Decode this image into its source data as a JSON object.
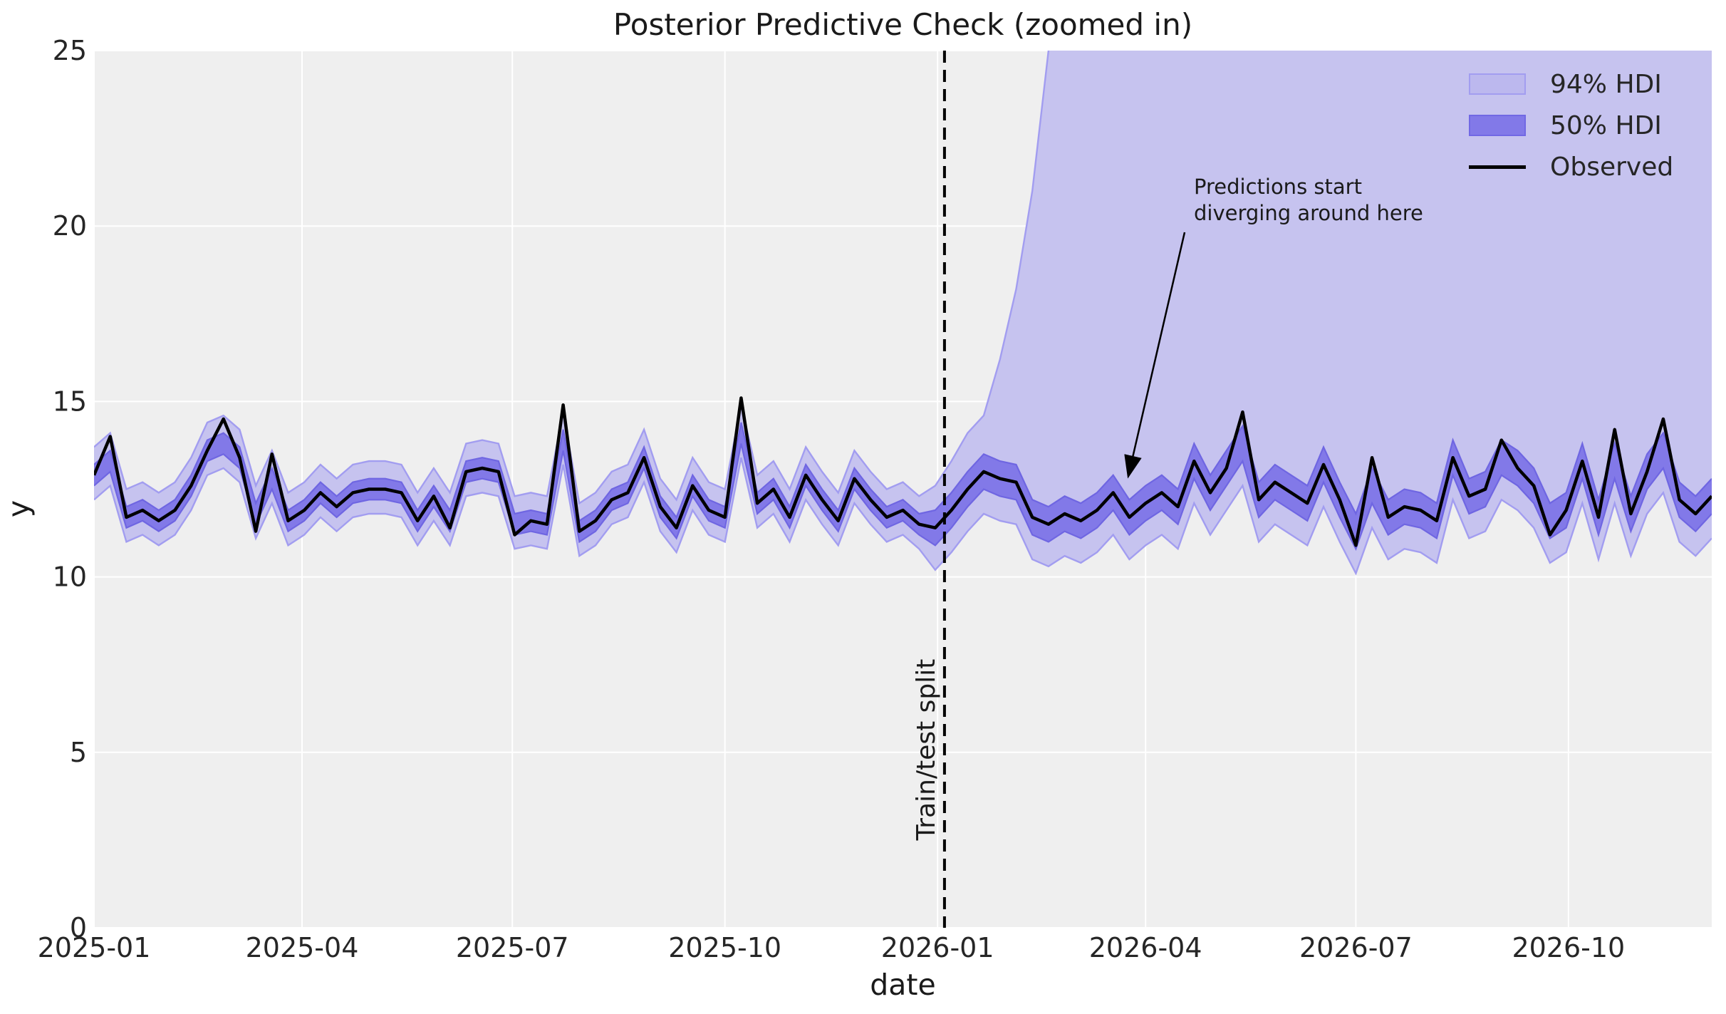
{
  "title": "Posterior Predictive Check (zoomed in)",
  "axes": {
    "xlabel": "date",
    "ylabel": "y"
  },
  "legend": {
    "items": [
      {
        "label": "94% HDI",
        "swatch": "patch-light"
      },
      {
        "label": "50% HDI",
        "swatch": "patch-dark"
      },
      {
        "label": "Observed",
        "swatch": "line"
      }
    ]
  },
  "split": {
    "label": "Train/test split",
    "date": "2026-01-01"
  },
  "annotation": {
    "line1": "Predictions start",
    "line2": "diverging around here"
  },
  "colors": {
    "figure_bg": "#ffffff",
    "axes_bg": "#efefef",
    "grid": "#ffffff",
    "hdi94_fill": "#c6c3ef",
    "hdi94_edge": "#a29df0",
    "hdi50_fill": "#8279e8",
    "hdi50_edge": "#6f66e2",
    "observed_line": "#000000",
    "split_line": "#000000",
    "text": "#262626"
  },
  "chart_data": {
    "type": "line",
    "title": "Posterior Predictive Check (zoomed in)",
    "xlabel": "date",
    "ylabel": "y",
    "grid": true,
    "legend_position": "upper right",
    "ylim": [
      0,
      25
    ],
    "y_ticks": [
      0,
      5,
      10,
      15,
      20,
      25
    ],
    "x_start_date": "2025-01-01",
    "x_freq_days": 7,
    "x_total_days": 700,
    "x_ticks": [
      {
        "label": "2025-01",
        "day": 0
      },
      {
        "label": "2025-04",
        "day": 90
      },
      {
        "label": "2025-07",
        "day": 181
      },
      {
        "label": "2025-10",
        "day": 273
      },
      {
        "label": "2026-01",
        "day": 365
      },
      {
        "label": "2026-04",
        "day": 455
      },
      {
        "label": "2026-07",
        "day": 546
      },
      {
        "label": "2026-10",
        "day": 638
      }
    ],
    "train_test_split_day": 368,
    "series": {
      "observed": [
        12.9,
        14.0,
        11.7,
        11.9,
        11.6,
        11.9,
        12.6,
        13.6,
        14.5,
        13.4,
        11.3,
        13.5,
        11.6,
        11.9,
        12.4,
        12.0,
        12.4,
        12.5,
        12.5,
        12.4,
        11.6,
        12.3,
        11.4,
        13.0,
        13.1,
        13.0,
        11.2,
        11.6,
        11.5,
        14.9,
        11.3,
        11.6,
        12.2,
        12.4,
        13.4,
        12.0,
        11.4,
        12.6,
        11.9,
        11.7,
        15.1,
        12.1,
        12.5,
        11.7,
        12.9,
        12.2,
        11.6,
        12.8,
        12.2,
        11.7,
        11.9,
        11.5,
        11.4,
        11.9,
        12.5,
        13.0,
        12.8,
        12.7,
        11.7,
        11.5,
        11.8,
        11.6,
        11.9,
        12.4,
        11.7,
        12.1,
        12.4,
        12.0,
        13.3,
        12.4,
        13.1,
        14.7,
        12.2,
        12.7,
        12.4,
        12.1,
        13.2,
        12.2,
        10.9,
        13.4,
        11.7,
        12.0,
        11.9,
        11.6,
        13.4,
        12.3,
        12.5,
        13.9,
        13.1,
        12.6,
        11.2,
        11.9,
        13.3,
        11.7,
        14.2,
        11.8,
        13.0,
        14.5,
        12.2,
        11.8,
        12.3
      ],
      "hdi50_lower": [
        12.6,
        13.0,
        11.4,
        11.6,
        11.3,
        11.6,
        12.3,
        13.3,
        13.5,
        13.1,
        11.5,
        12.5,
        11.3,
        11.6,
        12.1,
        11.7,
        12.1,
        12.2,
        12.2,
        12.1,
        11.3,
        12.0,
        11.3,
        12.7,
        12.8,
        12.7,
        11.2,
        11.3,
        11.2,
        13.6,
        11.0,
        11.3,
        11.9,
        12.1,
        13.1,
        11.7,
        11.1,
        12.3,
        11.6,
        11.4,
        13.8,
        11.8,
        12.2,
        11.4,
        12.6,
        11.9,
        11.3,
        12.5,
        11.9,
        11.4,
        11.6,
        11.2,
        10.9,
        11.4,
        12.0,
        12.5,
        12.3,
        12.2,
        11.2,
        11.0,
        11.3,
        11.1,
        11.4,
        11.9,
        11.2,
        11.6,
        11.9,
        11.5,
        12.8,
        11.9,
        12.6,
        13.3,
        11.7,
        12.2,
        11.9,
        11.6,
        12.7,
        11.7,
        10.8,
        12.1,
        11.2,
        11.5,
        11.4,
        11.1,
        12.9,
        11.8,
        12.0,
        12.9,
        12.6,
        12.1,
        11.1,
        11.4,
        12.8,
        11.2,
        12.8,
        11.3,
        12.5,
        13.1,
        11.7,
        11.3,
        11.8
      ],
      "hdi50_upper": [
        13.2,
        13.6,
        12.0,
        12.2,
        11.9,
        12.2,
        12.9,
        13.9,
        14.1,
        13.7,
        12.1,
        13.1,
        11.9,
        12.2,
        12.7,
        12.3,
        12.7,
        12.8,
        12.8,
        12.7,
        11.9,
        12.6,
        11.9,
        13.3,
        13.4,
        13.3,
        11.8,
        11.9,
        11.8,
        14.2,
        11.6,
        11.9,
        12.5,
        12.7,
        13.7,
        12.3,
        11.7,
        12.9,
        12.2,
        12.0,
        14.4,
        12.4,
        12.8,
        12.0,
        13.2,
        12.5,
        11.9,
        13.1,
        12.5,
        12.0,
        12.2,
        11.8,
        11.9,
        12.4,
        13.0,
        13.5,
        13.3,
        13.2,
        12.2,
        12.0,
        12.3,
        12.1,
        12.4,
        12.9,
        12.2,
        12.6,
        12.9,
        12.5,
        13.8,
        12.9,
        13.6,
        14.3,
        12.7,
        13.2,
        12.9,
        12.6,
        13.7,
        12.7,
        11.8,
        13.1,
        12.2,
        12.5,
        12.4,
        12.1,
        13.9,
        12.8,
        13.0,
        13.9,
        13.6,
        13.1,
        12.1,
        12.4,
        13.8,
        12.2,
        13.8,
        12.3,
        13.5,
        14.1,
        12.7,
        12.3,
        12.8
      ],
      "hdi94_lower": [
        12.2,
        12.6,
        11.0,
        11.2,
        10.9,
        11.2,
        11.9,
        12.9,
        13.1,
        12.7,
        11.1,
        12.1,
        10.9,
        11.2,
        11.7,
        11.3,
        11.7,
        11.8,
        11.8,
        11.7,
        10.9,
        11.6,
        10.9,
        12.3,
        12.4,
        12.3,
        10.8,
        10.9,
        10.8,
        13.2,
        10.6,
        10.9,
        11.5,
        11.7,
        12.7,
        11.3,
        10.7,
        11.9,
        11.2,
        11.0,
        13.4,
        11.4,
        11.8,
        11.0,
        12.2,
        11.5,
        10.9,
        12.1,
        11.5,
        11.0,
        11.2,
        10.8,
        10.2,
        10.7,
        11.3,
        11.8,
        11.6,
        11.5,
        10.5,
        10.3,
        10.6,
        10.4,
        10.7,
        11.2,
        10.5,
        10.9,
        11.2,
        10.8,
        12.1,
        11.2,
        11.9,
        12.6,
        11.0,
        11.5,
        11.2,
        10.9,
        12.0,
        11.0,
        10.1,
        11.4,
        10.5,
        10.8,
        10.7,
        10.4,
        12.2,
        11.1,
        11.3,
        12.2,
        11.9,
        11.4,
        10.4,
        10.7,
        12.1,
        10.5,
        12.1,
        10.6,
        11.8,
        12.4,
        11.0,
        10.6,
        11.1
      ],
      "hdi94_upper": [
        13.7,
        14.1,
        12.5,
        12.7,
        12.4,
        12.7,
        13.4,
        14.4,
        14.6,
        14.2,
        12.6,
        13.6,
        12.4,
        12.7,
        13.2,
        12.8,
        13.2,
        13.3,
        13.3,
        13.2,
        12.4,
        13.1,
        12.4,
        13.8,
        13.9,
        13.8,
        12.3,
        12.4,
        12.3,
        14.7,
        12.1,
        12.4,
        13.0,
        13.2,
        14.2,
        12.8,
        12.2,
        13.4,
        12.7,
        12.5,
        14.9,
        12.9,
        13.3,
        12.5,
        13.7,
        13.0,
        12.4,
        13.6,
        13.0,
        12.5,
        12.7,
        12.3,
        12.6,
        13.3,
        14.1,
        14.6,
        16.2,
        18.2,
        21,
        25,
        31,
        40,
        54,
        75,
        105,
        150,
        215,
        310,
        450,
        650,
        950,
        1400,
        2000,
        2000,
        2000,
        2000,
        2000,
        2000,
        2000,
        2000,
        2000,
        2000,
        2000,
        2000,
        2000,
        2000,
        2000,
        2000,
        2000,
        2000,
        2000,
        2000,
        2000,
        2000,
        2000,
        2000,
        2000,
        2000,
        2000,
        2000,
        2000,
        2000
      ]
    }
  }
}
